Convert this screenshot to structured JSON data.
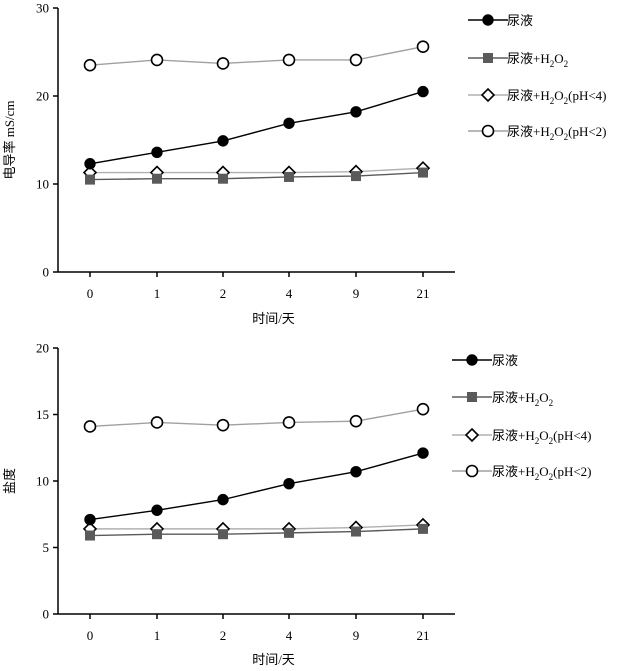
{
  "chart_data": [
    {
      "type": "line",
      "ylabel": "电导率  mS/cm",
      "xlabel": "时间/天",
      "categories": [
        "0",
        "1",
        "2",
        "4",
        "9",
        "21"
      ],
      "ylim": [
        0,
        30
      ],
      "yticks": [
        0,
        10,
        20,
        30
      ],
      "legend_position": "top-right",
      "series": [
        {
          "name": "尿液",
          "label": {
            "pre": "尿液",
            "has_h2o2": false
          },
          "marker": "filled-circle",
          "color": "#000000",
          "values": [
            12.3,
            13.6,
            14.9,
            16.9,
            18.2,
            20.5
          ]
        },
        {
          "name": "尿液+H2O2",
          "label": {
            "pre": "尿液+H",
            "sub1": "2",
            "mid": "O",
            "sub2": "2",
            "post": "",
            "has_h2o2": true
          },
          "marker": "filled-square",
          "color": "#5a5a5a",
          "values": [
            10.5,
            10.6,
            10.6,
            10.8,
            10.9,
            11.3
          ]
        },
        {
          "name": "尿液+H2O2(pH<4)",
          "label": {
            "pre": "尿液+H",
            "sub1": "2",
            "mid": "O",
            "sub2": "2",
            "post": "(pH<4)",
            "has_h2o2": true
          },
          "marker": "open-diamond",
          "color": "#b0b0b0",
          "values": [
            11.3,
            11.3,
            11.3,
            11.3,
            11.4,
            11.8
          ]
        },
        {
          "name": "尿液+H2O2(pH<2)",
          "label": {
            "pre": "尿液+H",
            "sub1": "2",
            "mid": "O",
            "sub2": "2",
            "post": "(pH<2)",
            "has_h2o2": true
          },
          "marker": "open-circle",
          "color": "#a0a0a0",
          "values": [
            23.5,
            24.1,
            23.7,
            24.1,
            24.1,
            25.6
          ]
        }
      ]
    },
    {
      "type": "line",
      "ylabel": "盐度",
      "xlabel": "时间/天",
      "categories": [
        "0",
        "1",
        "2",
        "4",
        "9",
        "21"
      ],
      "ylim": [
        0,
        20
      ],
      "yticks": [
        0,
        5,
        10,
        15,
        20
      ],
      "legend_position": "top-right",
      "series": [
        {
          "name": "尿液",
          "label": {
            "pre": "尿液",
            "has_h2o2": false
          },
          "marker": "filled-circle",
          "color": "#000000",
          "values": [
            7.1,
            7.8,
            8.6,
            9.8,
            10.7,
            12.1
          ]
        },
        {
          "name": "尿液+H2O2",
          "label": {
            "pre": "尿液+H",
            "sub1": "2",
            "mid": "O",
            "sub2": "2",
            "post": "",
            "has_h2o2": true
          },
          "marker": "filled-square",
          "color": "#5a5a5a",
          "values": [
            5.9,
            6.0,
            6.0,
            6.1,
            6.2,
            6.4
          ]
        },
        {
          "name": "尿液+H2O2(pH<4)",
          "label": {
            "pre": "尿液+H",
            "sub1": "2",
            "mid": "O",
            "sub2": "2",
            "post": "(pH<4)",
            "has_h2o2": true
          },
          "marker": "open-diamond",
          "color": "#b0b0b0",
          "values": [
            6.4,
            6.4,
            6.4,
            6.4,
            6.5,
            6.7
          ]
        },
        {
          "name": "尿液+H2O2(pH<2)",
          "label": {
            "pre": "尿液+H",
            "sub1": "2",
            "mid": "O",
            "sub2": "2",
            "post": "(pH<2)",
            "has_h2o2": true
          },
          "marker": "open-circle",
          "color": "#a0a0a0",
          "values": [
            14.1,
            14.4,
            14.2,
            14.4,
            14.5,
            15.4
          ]
        }
      ]
    }
  ]
}
